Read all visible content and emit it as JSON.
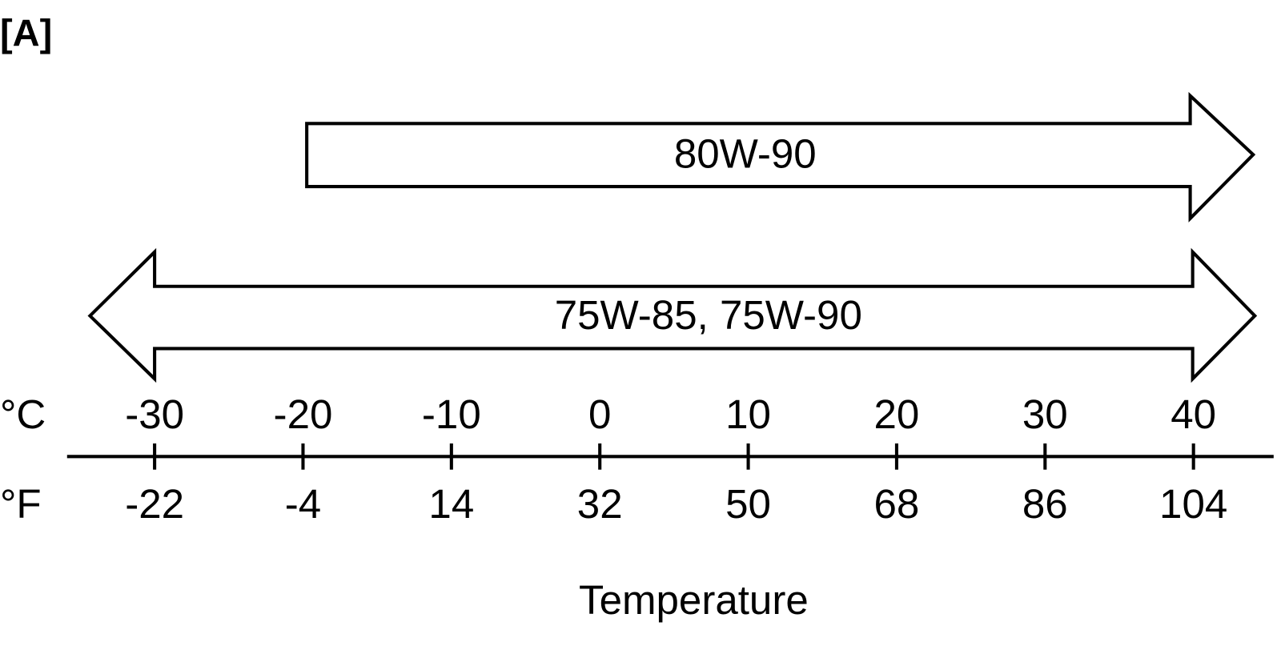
{
  "label": "[A]",
  "ranges": [
    {
      "name": "80W-90"
    },
    {
      "name": "75W-85, 75W-90"
    }
  ],
  "scale": {
    "celsius": {
      "unit": "°C",
      "ticks": [
        -30,
        -20,
        -10,
        0,
        10,
        20,
        30,
        40
      ]
    },
    "fahrenheit": {
      "unit": "°F",
      "ticks": [
        -22,
        -4,
        14,
        32,
        50,
        68,
        86,
        104
      ]
    },
    "title": "Temperature"
  }
}
